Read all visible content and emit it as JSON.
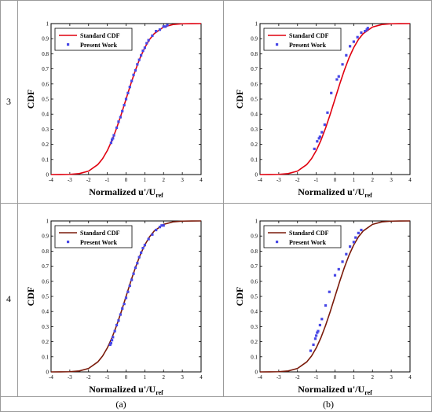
{
  "row_labels": [
    "3",
    "4"
  ],
  "column_captions": [
    "(a)",
    "(b)"
  ],
  "chart_data": [
    {
      "type": "line",
      "panel": "row 3, column (a)",
      "xlabel": "Normalized  u'/U",
      "xlabel_sub": "ref",
      "ylabel": "CDF",
      "xlim": [
        -4,
        4
      ],
      "ylim": [
        0,
        1
      ],
      "x_ticks": [
        -4,
        -3,
        -2,
        -1,
        0,
        1,
        2,
        3,
        4
      ],
      "y_ticks": [
        0,
        0.1,
        0.2,
        0.3,
        0.4,
        0.5,
        0.6,
        0.7,
        0.8,
        0.9,
        1
      ],
      "line_color": "#e0000f",
      "marker_color": "#4747e6",
      "legend_position": "top-left",
      "series": [
        {
          "name": "Standard CDF",
          "kind": "line",
          "x": [
            -4,
            -3.5,
            -3,
            -2.5,
            -2,
            -1.5,
            -1.25,
            -1,
            -0.75,
            -0.5,
            -0.25,
            0,
            0.25,
            0.5,
            0.75,
            1,
            1.25,
            1.5,
            2,
            2.5,
            3,
            3.5,
            4
          ],
          "y": [
            0.0,
            0.0002,
            0.0013,
            0.0062,
            0.0228,
            0.0668,
            0.1056,
            0.1587,
            0.2266,
            0.3085,
            0.4013,
            0.5,
            0.5987,
            0.6915,
            0.7734,
            0.8413,
            0.8944,
            0.9332,
            0.9772,
            0.9938,
            0.9987,
            0.9998,
            1.0
          ]
        },
        {
          "name": "Present Work",
          "kind": "scatter",
          "x": [
            -0.8,
            -0.75,
            -0.7,
            -0.65,
            -0.5,
            -0.4,
            -0.3,
            -0.2,
            -0.1,
            0.0,
            0.1,
            0.2,
            0.3,
            0.4,
            0.5,
            0.6,
            0.7,
            0.8,
            0.9,
            1.0,
            1.1,
            1.2,
            1.4,
            1.6,
            1.8,
            2.0,
            2.1,
            2.2
          ],
          "y": [
            0.21,
            0.23,
            0.24,
            0.26,
            0.31,
            0.35,
            0.38,
            0.42,
            0.46,
            0.5,
            0.54,
            0.58,
            0.62,
            0.66,
            0.69,
            0.73,
            0.76,
            0.79,
            0.82,
            0.84,
            0.87,
            0.89,
            0.92,
            0.95,
            0.96,
            0.98,
            0.98,
            0.99
          ]
        }
      ]
    },
    {
      "type": "line",
      "panel": "row 3, column (b)",
      "xlabel": "Normalized  u'/U",
      "xlabel_sub": "ref",
      "ylabel": "CDF",
      "xlim": [
        -4,
        4
      ],
      "ylim": [
        0,
        1
      ],
      "x_ticks": [
        -4,
        -3,
        -2,
        -1,
        0,
        1,
        2,
        3,
        4
      ],
      "y_ticks": [
        0,
        0.1,
        0.2,
        0.3,
        0.4,
        0.5,
        0.6,
        0.7,
        0.8,
        0.9,
        1
      ],
      "line_color": "#e0000f",
      "marker_color": "#4747e6",
      "legend_position": "top-left",
      "series": [
        {
          "name": "Standard CDF",
          "kind": "line",
          "x": [
            -4,
            -3.5,
            -3,
            -2.5,
            -2,
            -1.5,
            -1.25,
            -1,
            -0.75,
            -0.5,
            -0.25,
            0,
            0.25,
            0.5,
            0.75,
            1,
            1.25,
            1.5,
            2,
            2.5,
            3,
            3.5,
            4
          ],
          "y": [
            0.0,
            0.0002,
            0.0013,
            0.0062,
            0.0228,
            0.0668,
            0.1056,
            0.1587,
            0.2266,
            0.3085,
            0.4013,
            0.5,
            0.5987,
            0.6915,
            0.7734,
            0.8413,
            0.8944,
            0.9332,
            0.9772,
            0.9938,
            0.9987,
            0.9998,
            1.0
          ]
        },
        {
          "name": "Present Work",
          "kind": "scatter",
          "x": [
            -1.1,
            -0.95,
            -0.85,
            -0.8,
            -0.7,
            -0.55,
            -0.4,
            -0.2,
            0.1,
            0.2,
            0.4,
            0.6,
            0.8,
            1.0,
            1.2,
            1.4,
            1.6,
            1.7,
            1.75
          ],
          "y": [
            0.17,
            0.22,
            0.24,
            0.25,
            0.28,
            0.33,
            0.41,
            0.54,
            0.63,
            0.65,
            0.73,
            0.79,
            0.85,
            0.88,
            0.91,
            0.94,
            0.95,
            0.96,
            0.97
          ]
        }
      ]
    },
    {
      "type": "line",
      "panel": "row 4, column (a)",
      "xlabel": "Normalized  u'/U",
      "xlabel_sub": "ref",
      "ylabel": "CDF",
      "xlim": [
        -4,
        4
      ],
      "ylim": [
        0,
        1
      ],
      "x_ticks": [
        -4,
        -3,
        -2,
        -1,
        0,
        1,
        2,
        3,
        4
      ],
      "y_ticks": [
        0,
        0.1,
        0.2,
        0.3,
        0.4,
        0.5,
        0.6,
        0.7,
        0.8,
        0.9,
        1
      ],
      "line_color": "#7a1a0a",
      "marker_color": "#4747e6",
      "legend_position": "top-left",
      "series": [
        {
          "name": "Standard CDF",
          "kind": "line",
          "x": [
            -4,
            -3.5,
            -3,
            -2.5,
            -2,
            -1.5,
            -1.25,
            -1,
            -0.75,
            -0.5,
            -0.25,
            0,
            0.25,
            0.5,
            0.75,
            1,
            1.25,
            1.5,
            2,
            2.5,
            3,
            3.5,
            4
          ],
          "y": [
            0.0,
            0.0002,
            0.0013,
            0.0062,
            0.0228,
            0.0668,
            0.1056,
            0.1587,
            0.2266,
            0.3085,
            0.4013,
            0.5,
            0.5987,
            0.6915,
            0.7734,
            0.8413,
            0.8944,
            0.9332,
            0.9772,
            0.9938,
            0.9987,
            0.9998,
            1.0
          ]
        },
        {
          "name": "Present Work",
          "kind": "scatter",
          "x": [
            -0.85,
            -0.8,
            -0.75,
            -0.7,
            -0.6,
            -0.5,
            -0.4,
            -0.3,
            -0.2,
            -0.1,
            0.0,
            0.1,
            0.2,
            0.3,
            0.4,
            0.5,
            0.6,
            0.7,
            0.8,
            0.9,
            1.0,
            1.2,
            1.4,
            1.6,
            1.8,
            1.9,
            2.0
          ],
          "y": [
            0.18,
            0.19,
            0.21,
            0.23,
            0.27,
            0.31,
            0.34,
            0.38,
            0.42,
            0.45,
            0.49,
            0.53,
            0.57,
            0.61,
            0.65,
            0.69,
            0.72,
            0.76,
            0.79,
            0.82,
            0.84,
            0.88,
            0.91,
            0.94,
            0.96,
            0.97,
            0.97
          ]
        }
      ]
    },
    {
      "type": "line",
      "panel": "row 4, column (b)",
      "xlabel": "Normalized  u'/U",
      "xlabel_sub": "ref",
      "ylabel": "CDF",
      "xlim": [
        -4,
        4
      ],
      "ylim": [
        0,
        1
      ],
      "x_ticks": [
        -4,
        -3,
        -2,
        -1,
        0,
        1,
        2,
        3,
        4
      ],
      "y_ticks": [
        0,
        0.1,
        0.2,
        0.3,
        0.4,
        0.5,
        0.6,
        0.7,
        0.8,
        0.9,
        1
      ],
      "line_color": "#7a1a0a",
      "marker_color": "#4747e6",
      "legend_position": "top-left",
      "series": [
        {
          "name": "Standard CDF",
          "kind": "line",
          "x": [
            -4,
            -3.5,
            -3,
            -2.5,
            -2,
            -1.5,
            -1.25,
            -1,
            -0.75,
            -0.5,
            -0.25,
            0,
            0.25,
            0.5,
            0.75,
            1,
            1.25,
            1.5,
            2,
            2.5,
            3,
            3.5,
            4
          ],
          "y": [
            0.0,
            0.0002,
            0.0013,
            0.0062,
            0.0228,
            0.0668,
            0.1056,
            0.1587,
            0.2266,
            0.3085,
            0.4013,
            0.5,
            0.5987,
            0.6915,
            0.7734,
            0.8413,
            0.8944,
            0.9332,
            0.9772,
            0.9938,
            0.9987,
            0.9998,
            1.0
          ]
        },
        {
          "name": "Present Work",
          "kind": "scatter",
          "x": [
            -1.3,
            -1.15,
            -1.05,
            -1.0,
            -0.95,
            -0.9,
            -0.8,
            -0.7,
            -0.5,
            -0.3,
            0.0,
            0.2,
            0.4,
            0.6,
            0.8,
            1.0,
            1.1,
            1.25,
            1.4
          ],
          "y": [
            0.14,
            0.18,
            0.22,
            0.24,
            0.26,
            0.27,
            0.31,
            0.35,
            0.44,
            0.53,
            0.64,
            0.68,
            0.73,
            0.78,
            0.83,
            0.86,
            0.89,
            0.92,
            0.94
          ]
        }
      ]
    }
  ]
}
